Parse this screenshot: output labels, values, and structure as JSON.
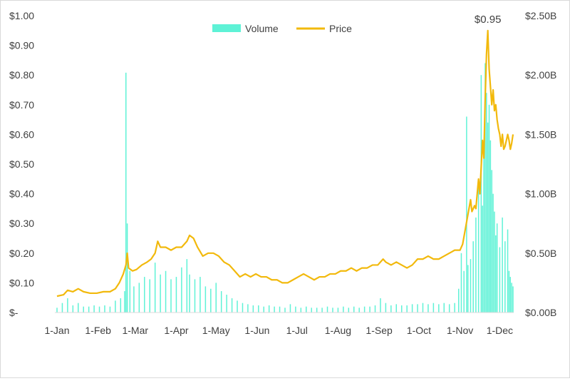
{
  "chart_data": {
    "type": "bar+line",
    "title": "",
    "colors": {
      "volume": "#5ef2d6",
      "price": "#f2b90c",
      "axis": "#d9d9d9",
      "text": "#404040"
    },
    "legend": {
      "position": "top-center",
      "entries": [
        "Volume",
        "Price"
      ]
    },
    "grid": false,
    "x_axis": {
      "ticks": [
        "1-Jan",
        "1-Feb",
        "1-Mar",
        "1-Apr",
        "1-May",
        "1-Jun",
        "1-Jul",
        "1-Aug",
        "1-Sep",
        "1-Oct",
        "1-Nov",
        "1-Dec"
      ],
      "tick_days": [
        0,
        31,
        59,
        90,
        120,
        151,
        181,
        212,
        243,
        273,
        304,
        334
      ],
      "range_days": [
        0,
        344
      ]
    },
    "y_left": {
      "ylim": [
        0,
        1.0
      ],
      "tick_values": [
        0,
        0.1,
        0.2,
        0.3,
        0.4,
        0.5,
        0.6,
        0.7,
        0.8,
        0.9,
        1.0
      ],
      "tick_labels": [
        "$-",
        "$0.10",
        "$0.20",
        "$0.30",
        "$0.40",
        "$0.50",
        "$0.60",
        "$0.70",
        "$0.80",
        "$0.90",
        "$1.00"
      ]
    },
    "y_right": {
      "ylim": [
        0,
        2.5
      ],
      "tick_values": [
        0,
        0.5,
        1.0,
        1.5,
        2.0,
        2.5
      ],
      "tick_labels": [
        "$0.00B",
        "$0.50B",
        "$1.00B",
        "$1.50B",
        "$2.00B",
        "$2.50B"
      ]
    },
    "annotations": [
      {
        "text": "$0.95",
        "x_day": 325,
        "y": 0.95
      }
    ],
    "series": [
      {
        "name": "Price",
        "kind": "line",
        "axis": "left",
        "points": [
          [
            0,
            0.055
          ],
          [
            5,
            0.06
          ],
          [
            8,
            0.075
          ],
          [
            12,
            0.07
          ],
          [
            16,
            0.08
          ],
          [
            20,
            0.07
          ],
          [
            25,
            0.065
          ],
          [
            30,
            0.065
          ],
          [
            35,
            0.07
          ],
          [
            40,
            0.07
          ],
          [
            44,
            0.08
          ],
          [
            47,
            0.1
          ],
          [
            50,
            0.13
          ],
          [
            52,
            0.16
          ],
          [
            53,
            0.2
          ],
          [
            54,
            0.15
          ],
          [
            57,
            0.14
          ],
          [
            60,
            0.145
          ],
          [
            64,
            0.16
          ],
          [
            68,
            0.17
          ],
          [
            71,
            0.18
          ],
          [
            74,
            0.2
          ],
          [
            76,
            0.24
          ],
          [
            78,
            0.22
          ],
          [
            82,
            0.22
          ],
          [
            86,
            0.21
          ],
          [
            90,
            0.22
          ],
          [
            94,
            0.22
          ],
          [
            98,
            0.24
          ],
          [
            100,
            0.26
          ],
          [
            103,
            0.25
          ],
          [
            106,
            0.22
          ],
          [
            110,
            0.19
          ],
          [
            114,
            0.2
          ],
          [
            118,
            0.2
          ],
          [
            122,
            0.19
          ],
          [
            126,
            0.17
          ],
          [
            130,
            0.16
          ],
          [
            134,
            0.14
          ],
          [
            138,
            0.12
          ],
          [
            142,
            0.13
          ],
          [
            146,
            0.12
          ],
          [
            150,
            0.13
          ],
          [
            154,
            0.12
          ],
          [
            158,
            0.12
          ],
          [
            162,
            0.11
          ],
          [
            166,
            0.11
          ],
          [
            170,
            0.1
          ],
          [
            174,
            0.1
          ],
          [
            178,
            0.11
          ],
          [
            182,
            0.12
          ],
          [
            186,
            0.13
          ],
          [
            190,
            0.12
          ],
          [
            194,
            0.11
          ],
          [
            198,
            0.12
          ],
          [
            202,
            0.12
          ],
          [
            206,
            0.13
          ],
          [
            210,
            0.13
          ],
          [
            214,
            0.14
          ],
          [
            218,
            0.14
          ],
          [
            222,
            0.15
          ],
          [
            226,
            0.14
          ],
          [
            230,
            0.15
          ],
          [
            234,
            0.15
          ],
          [
            238,
            0.16
          ],
          [
            242,
            0.16
          ],
          [
            246,
            0.18
          ],
          [
            248,
            0.17
          ],
          [
            252,
            0.16
          ],
          [
            256,
            0.17
          ],
          [
            260,
            0.16
          ],
          [
            264,
            0.15
          ],
          [
            268,
            0.16
          ],
          [
            272,
            0.18
          ],
          [
            276,
            0.18
          ],
          [
            280,
            0.19
          ],
          [
            284,
            0.18
          ],
          [
            288,
            0.18
          ],
          [
            292,
            0.19
          ],
          [
            296,
            0.2
          ],
          [
            300,
            0.21
          ],
          [
            304,
            0.21
          ],
          [
            306,
            0.23
          ],
          [
            308,
            0.28
          ],
          [
            310,
            0.33
          ],
          [
            312,
            0.38
          ],
          [
            313,
            0.34
          ],
          [
            315,
            0.36
          ],
          [
            316,
            0.35
          ],
          [
            318,
            0.45
          ],
          [
            319,
            0.4
          ],
          [
            321,
            0.58
          ],
          [
            322,
            0.52
          ],
          [
            323,
            0.72
          ],
          [
            324,
            0.87
          ],
          [
            325,
            0.95
          ],
          [
            326,
            0.82
          ],
          [
            327,
            0.76
          ],
          [
            328,
            0.7
          ],
          [
            329,
            0.75
          ],
          [
            330,
            0.68
          ],
          [
            331,
            0.7
          ],
          [
            332,
            0.65
          ],
          [
            333,
            0.62
          ],
          [
            334,
            0.6
          ],
          [
            335,
            0.56
          ],
          [
            336,
            0.6
          ],
          [
            337,
            0.55
          ],
          [
            338,
            0.56
          ],
          [
            339,
            0.58
          ],
          [
            340,
            0.6
          ],
          [
            341,
            0.58
          ],
          [
            342,
            0.55
          ],
          [
            343,
            0.57
          ],
          [
            344,
            0.6
          ]
        ]
      },
      {
        "name": "Volume",
        "kind": "bar",
        "axis": "right",
        "points": [
          [
            0,
            0.04
          ],
          [
            4,
            0.08
          ],
          [
            8,
            0.12
          ],
          [
            12,
            0.06
          ],
          [
            16,
            0.08
          ],
          [
            20,
            0.05
          ],
          [
            24,
            0.05
          ],
          [
            28,
            0.06
          ],
          [
            32,
            0.05
          ],
          [
            36,
            0.06
          ],
          [
            40,
            0.05
          ],
          [
            44,
            0.1
          ],
          [
            48,
            0.12
          ],
          [
            51,
            0.18
          ],
          [
            52,
            2.02
          ],
          [
            53,
            0.75
          ],
          [
            55,
            0.35
          ],
          [
            58,
            0.22
          ],
          [
            62,
            0.25
          ],
          [
            66,
            0.3
          ],
          [
            70,
            0.28
          ],
          [
            74,
            0.42
          ],
          [
            78,
            0.32
          ],
          [
            82,
            0.35
          ],
          [
            86,
            0.28
          ],
          [
            90,
            0.3
          ],
          [
            94,
            0.38
          ],
          [
            98,
            0.45
          ],
          [
            100,
            0.32
          ],
          [
            104,
            0.28
          ],
          [
            108,
            0.3
          ],
          [
            112,
            0.22
          ],
          [
            116,
            0.2
          ],
          [
            120,
            0.25
          ],
          [
            124,
            0.18
          ],
          [
            128,
            0.15
          ],
          [
            132,
            0.12
          ],
          [
            136,
            0.1
          ],
          [
            140,
            0.08
          ],
          [
            144,
            0.07
          ],
          [
            148,
            0.06
          ],
          [
            152,
            0.06
          ],
          [
            156,
            0.05
          ],
          [
            160,
            0.06
          ],
          [
            164,
            0.05
          ],
          [
            168,
            0.05
          ],
          [
            172,
            0.04
          ],
          [
            176,
            0.07
          ],
          [
            180,
            0.05
          ],
          [
            184,
            0.04
          ],
          [
            188,
            0.05
          ],
          [
            192,
            0.04
          ],
          [
            196,
            0.04
          ],
          [
            200,
            0.04
          ],
          [
            204,
            0.05
          ],
          [
            208,
            0.04
          ],
          [
            212,
            0.04
          ],
          [
            216,
            0.05
          ],
          [
            220,
            0.04
          ],
          [
            224,
            0.05
          ],
          [
            228,
            0.04
          ],
          [
            232,
            0.05
          ],
          [
            236,
            0.05
          ],
          [
            240,
            0.06
          ],
          [
            244,
            0.12
          ],
          [
            248,
            0.08
          ],
          [
            252,
            0.06
          ],
          [
            256,
            0.07
          ],
          [
            260,
            0.06
          ],
          [
            264,
            0.06
          ],
          [
            268,
            0.07
          ],
          [
            272,
            0.07
          ],
          [
            276,
            0.08
          ],
          [
            280,
            0.07
          ],
          [
            284,
            0.08
          ],
          [
            288,
            0.07
          ],
          [
            292,
            0.08
          ],
          [
            296,
            0.07
          ],
          [
            300,
            0.08
          ],
          [
            303,
            0.2
          ],
          [
            305,
            0.5
          ],
          [
            307,
            0.35
          ],
          [
            309,
            1.65
          ],
          [
            310,
            0.4
          ],
          [
            312,
            0.45
          ],
          [
            314,
            0.6
          ],
          [
            316,
            0.8
          ],
          [
            318,
            1.1
          ],
          [
            320,
            2.0
          ],
          [
            321,
            0.9
          ],
          [
            322,
            1.35
          ],
          [
            323,
            2.1
          ],
          [
            324,
            1.85
          ],
          [
            325,
            1.6
          ],
          [
            326,
            1.75
          ],
          [
            327,
            1.45
          ],
          [
            328,
            1.2
          ],
          [
            329,
            1.0
          ],
          [
            330,
            0.85
          ],
          [
            331,
            0.65
          ],
          [
            332,
            0.75
          ],
          [
            334,
            0.55
          ],
          [
            336,
            0.8
          ],
          [
            338,
            0.6
          ],
          [
            340,
            0.7
          ],
          [
            341,
            0.35
          ],
          [
            342,
            0.3
          ],
          [
            343,
            0.25
          ],
          [
            344,
            0.22
          ]
        ]
      }
    ]
  }
}
